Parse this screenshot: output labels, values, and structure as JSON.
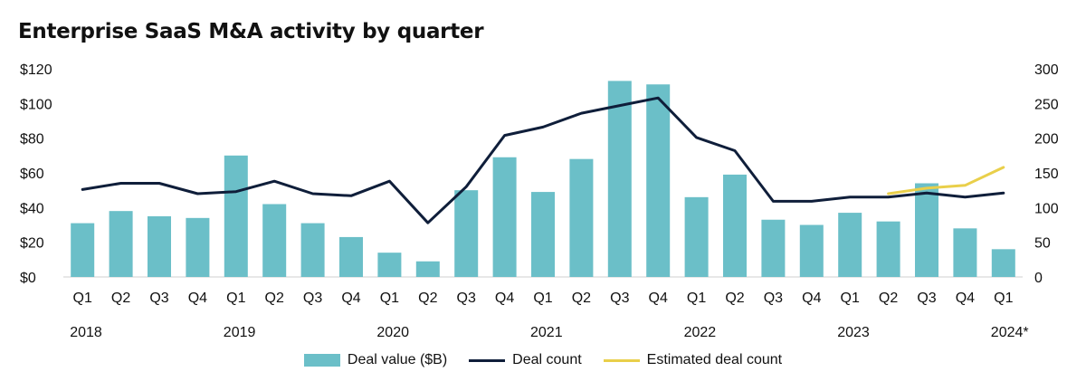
{
  "chart_data": {
    "type": "bar",
    "title": "Enterprise SaaS M&A activity by quarter",
    "quarters": [
      "Q1",
      "Q2",
      "Q3",
      "Q4",
      "Q1",
      "Q2",
      "Q3",
      "Q4",
      "Q1",
      "Q2",
      "Q3",
      "Q4",
      "Q1",
      "Q2",
      "Q3",
      "Q4",
      "Q1",
      "Q2",
      "Q3",
      "Q4",
      "Q1",
      "Q2",
      "Q3",
      "Q4",
      "Q1"
    ],
    "years": [
      {
        "label": "2018",
        "index": 0
      },
      {
        "label": "2019",
        "index": 4
      },
      {
        "label": "2020",
        "index": 8
      },
      {
        "label": "2021",
        "index": 12
      },
      {
        "label": "2022",
        "index": 16
      },
      {
        "label": "2023",
        "index": 20
      },
      {
        "label": "2024*",
        "index": 24
      }
    ],
    "left_axis": {
      "ticks": [
        "$0",
        "$20",
        "$40",
        "$60",
        "$80",
        "$100",
        "$120"
      ],
      "ylim": [
        0,
        120
      ]
    },
    "right_axis": {
      "ticks": [
        "0",
        "50",
        "100",
        "150",
        "200",
        "250",
        "300"
      ],
      "ylim": [
        0,
        300
      ]
    },
    "series": [
      {
        "name": "Deal value ($B)",
        "kind": "bar",
        "axis": "left",
        "color": "#6bbfc8",
        "values": [
          31,
          38,
          35,
          34,
          70,
          42,
          31,
          23,
          14,
          9,
          50,
          69,
          49,
          68,
          113,
          111,
          46,
          59,
          33,
          30,
          37,
          32,
          54,
          28,
          16
        ]
      },
      {
        "name": "Deal count",
        "kind": "line",
        "axis": "right",
        "color": "#0f1e3a",
        "values": [
          126,
          135,
          135,
          120,
          123,
          138,
          120,
          117,
          138,
          78,
          130,
          204,
          216,
          236,
          247,
          258,
          201,
          182,
          109,
          109,
          115,
          115,
          121,
          115,
          121
        ]
      },
      {
        "name": "Estimated deal count",
        "kind": "line",
        "axis": "right",
        "color": "#e9cf4a",
        "start_index": 21,
        "values": [
          120,
          128,
          132,
          158
        ]
      }
    ],
    "legend_position": "bottom"
  }
}
